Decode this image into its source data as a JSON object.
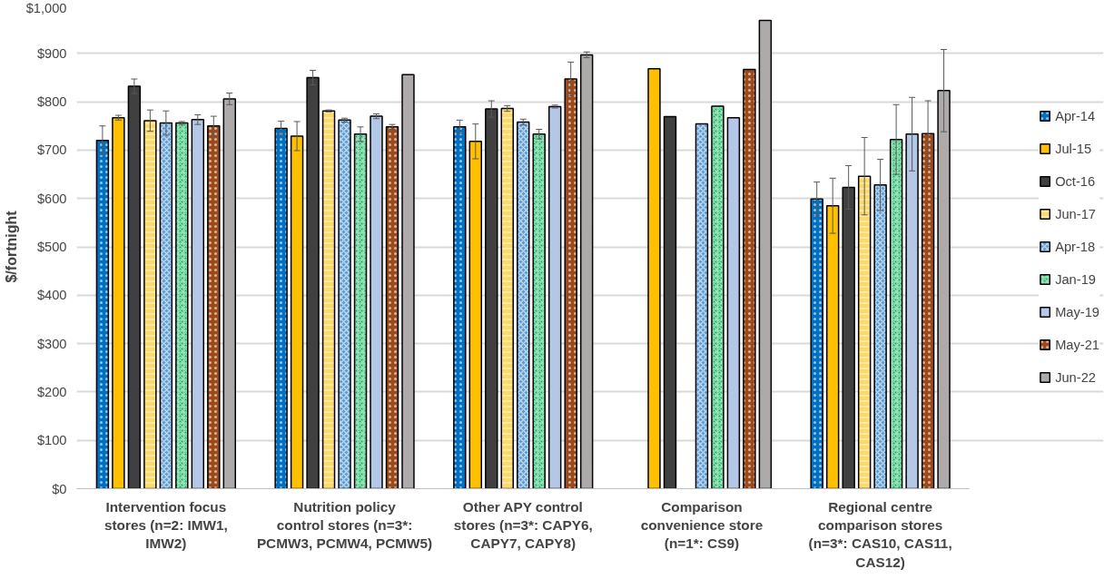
{
  "chart_data": {
    "type": "bar",
    "ylabel": "$/fortnight",
    "categories": [
      "Intervention focus stores (n=2: IMW1, IMW2)",
      "Nutrition policy control stores (n=3*: PCMW3, PCMW4, PCMW5)",
      "Other APY control stores (n=3*: CAPY6, CAPY7, CAPY8)",
      "Comparison convenience store (n=1*: CS9)",
      "Regional centre comparison stores (n=3*: CAS10, CAS11, CAS12)"
    ],
    "ylim": [
      0,
      1000
    ],
    "yticks": [
      {
        "value": 0,
        "label": "$0"
      },
      {
        "value": 100,
        "label": "$100"
      },
      {
        "value": 200,
        "label": "$200"
      },
      {
        "value": 300,
        "label": "$300"
      },
      {
        "value": 400,
        "label": "$400"
      },
      {
        "value": 500,
        "label": "$500"
      },
      {
        "value": 600,
        "label": "$600"
      },
      {
        "value": 700,
        "label": "$700"
      },
      {
        "value": 800,
        "label": "$800"
      },
      {
        "value": 900,
        "label": "$900"
      },
      {
        "value": 1000,
        "label": "$1,000"
      }
    ],
    "grid": "y",
    "legend": "right",
    "series": [
      {
        "name": "Apr-14",
        "color": "#0070c0",
        "values": [
          720,
          745,
          748,
          null,
          599
        ],
        "errors": [
          30,
          15,
          14,
          null,
          35
        ]
      },
      {
        "name": "Jul-15",
        "color": "#ffc000",
        "values": [
          767,
          729,
          718,
          868,
          585
        ],
        "errors": [
          5,
          30,
          36,
          null,
          57
        ]
      },
      {
        "name": "Oct-16",
        "color": "#404040",
        "values": [
          832,
          850,
          785,
          769,
          623
        ],
        "errors": [
          15,
          15,
          17,
          null,
          45
        ]
      },
      {
        "name": "Jun-17",
        "color": "#ffd966",
        "values": [
          761,
          781,
          786,
          null,
          646
        ],
        "errors": [
          22,
          2,
          6,
          null,
          80
        ]
      },
      {
        "name": "Apr-18",
        "color": "#5b9bd5",
        "values": [
          756,
          762,
          758,
          754,
          628
        ],
        "errors": [
          25,
          4,
          6,
          null,
          53
        ]
      },
      {
        "name": "Jan-19",
        "color": "#00b050",
        "values": [
          756,
          733,
          733,
          791,
          722
        ],
        "errors": [
          3,
          15,
          10,
          null,
          72
        ]
      },
      {
        "name": "May-19",
        "color": "#4472c4",
        "values": [
          763,
          770,
          790,
          767,
          733
        ],
        "errors": [
          10,
          5,
          3,
          null,
          76
        ]
      },
      {
        "name": "May-21",
        "color": "#9c4a1a",
        "values": [
          750,
          748,
          847,
          867,
          734
        ],
        "errors": [
          20,
          5,
          35,
          null,
          68
        ]
      },
      {
        "name": "Jun-22",
        "color": "#aeaaaa",
        "values": [
          806,
          856,
          897,
          968,
          823
        ],
        "errors": [
          12,
          null,
          6,
          null,
          85
        ]
      }
    ]
  }
}
